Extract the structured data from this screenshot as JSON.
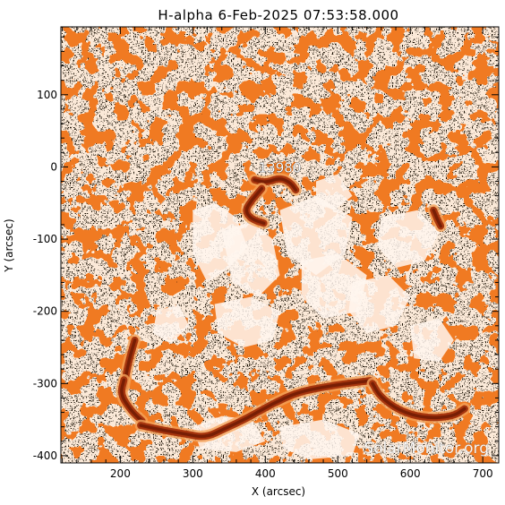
{
  "chart_data": {
    "type": "heatmap",
    "title": "H-alpha   6-Feb-2025 07:53:58.000",
    "xlabel": "X (arcsec)",
    "ylabel": "Y (arcsec)",
    "xlim": [
      118,
      722
    ],
    "ylim": [
      -410,
      194
    ],
    "x_ticks": [
      200,
      300,
      400,
      500,
      600,
      700
    ],
    "y_ticks": [
      -400,
      -300,
      -200,
      -100,
      0,
      100
    ],
    "colormap": [
      "#000000",
      "#f07a24",
      "#ffffff"
    ],
    "annotations": [
      {
        "text": "13980",
        "x": 420,
        "y": 0
      }
    ],
    "filaments": [
      {
        "name": "north",
        "points": [
          [
            385,
            -18
          ],
          [
            400,
            -22
          ],
          [
            420,
            -15
          ],
          [
            435,
            -22
          ],
          [
            442,
            -32
          ]
        ]
      },
      {
        "name": "hook",
        "points": [
          [
            395,
            -30
          ],
          [
            382,
            -45
          ],
          [
            372,
            -60
          ],
          [
            380,
            -72
          ],
          [
            398,
            -78
          ]
        ]
      },
      {
        "name": "east",
        "points": [
          [
            632,
            -60
          ],
          [
            637,
            -72
          ],
          [
            642,
            -82
          ]
        ]
      },
      {
        "name": "west-arm",
        "points": [
          [
            220,
            -240
          ],
          [
            212,
            -268
          ],
          [
            207,
            -292
          ],
          [
            205,
            -305
          ]
        ]
      },
      {
        "name": "west-foot",
        "points": [
          [
            205,
            -295
          ],
          [
            200,
            -315
          ],
          [
            215,
            -338
          ],
          [
            230,
            -352
          ]
        ]
      },
      {
        "name": "south-arc",
        "points": [
          [
            228,
            -358
          ],
          [
            260,
            -365
          ],
          [
            290,
            -370
          ],
          [
            318,
            -375
          ],
          [
            345,
            -362
          ],
          [
            375,
            -348
          ],
          [
            410,
            -328
          ],
          [
            445,
            -312
          ],
          [
            480,
            -305
          ],
          [
            512,
            -300
          ],
          [
            545,
            -296
          ]
        ]
      },
      {
        "name": "south-east",
        "points": [
          [
            548,
            -300
          ],
          [
            558,
            -318
          ],
          [
            585,
            -338
          ],
          [
            620,
            -348
          ],
          [
            658,
            -346
          ],
          [
            675,
            -335
          ]
        ]
      }
    ],
    "watermark": "SolarMonitor.org"
  }
}
